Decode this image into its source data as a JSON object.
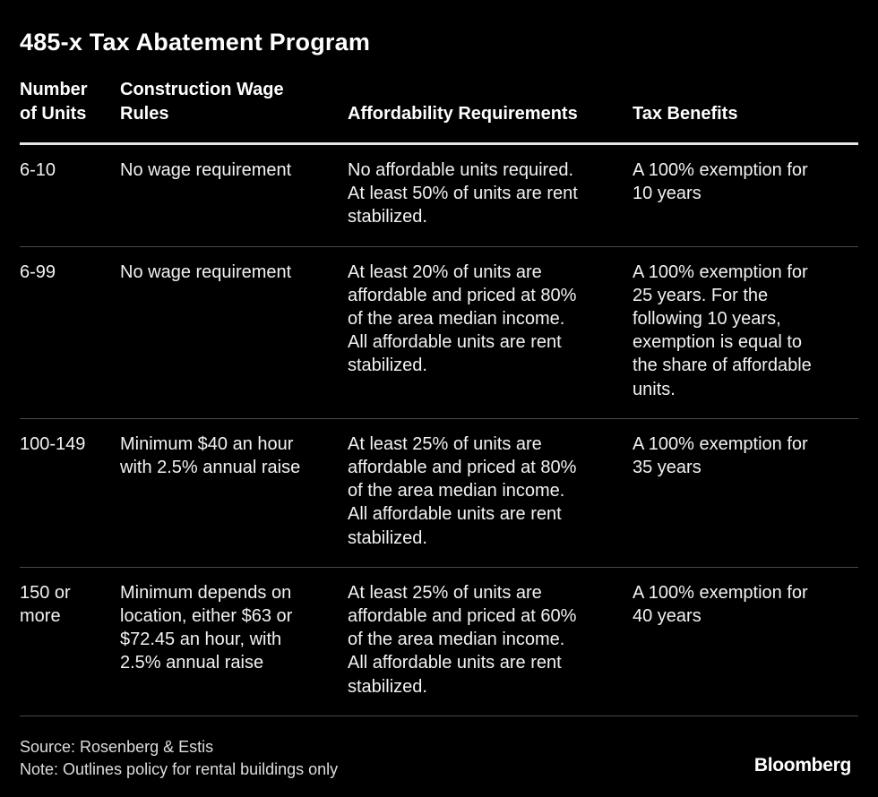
{
  "title": "485-x Tax Abatement Program",
  "chart_data": {
    "type": "table",
    "title": "485-x Tax Abatement Program",
    "columns": [
      [
        "Number",
        "of Units"
      ],
      [
        "Construction Wage",
        "Rules"
      ],
      [
        "",
        "Affordability Requirements"
      ],
      [
        "",
        "Tax Benefits"
      ]
    ],
    "rows": [
      [
        [
          "6-10"
        ],
        [
          "No wage requirement"
        ],
        [
          "No affordable units required.",
          "At least 50% of units are rent",
          "stabilized."
        ],
        [
          "A 100% exemption for",
          "10 years"
        ]
      ],
      [
        [
          "6-99"
        ],
        [
          "No wage requirement"
        ],
        [
          "At least 20% of units are",
          "affordable and priced at 80%",
          "of the area median income.",
          "All affordable units are rent",
          "stabilized."
        ],
        [
          "A 100% exemption for",
          "25 years. For the",
          "following 10 years,",
          "exemption is equal to",
          "the share of affordable",
          "units."
        ]
      ],
      [
        [
          "100-149"
        ],
        [
          "Minimum $40 an hour",
          "with 2.5% annual raise"
        ],
        [
          "At least 25% of units are",
          "affordable and priced at 80%",
          "of the area median income.",
          "All affordable units are rent",
          "stabilized."
        ],
        [
          "A 100% exemption for",
          "35 years"
        ]
      ],
      [
        [
          "150 or",
          "more"
        ],
        [
          "Minimum depends on",
          "location, either $63 or",
          "$72.45 an hour, with",
          "2.5% annual raise"
        ],
        [
          "At least 25% of units are",
          "affordable and priced at 60%",
          "of the area median income.",
          "All affordable units are rent",
          "stabilized."
        ],
        [
          "A 100% exemption for",
          "40 years"
        ]
      ]
    ]
  },
  "footer": {
    "source": "Source: Rosenberg & Estis",
    "note": "Note: Outlines policy for rental buildings only"
  },
  "logo": "Bloomberg"
}
